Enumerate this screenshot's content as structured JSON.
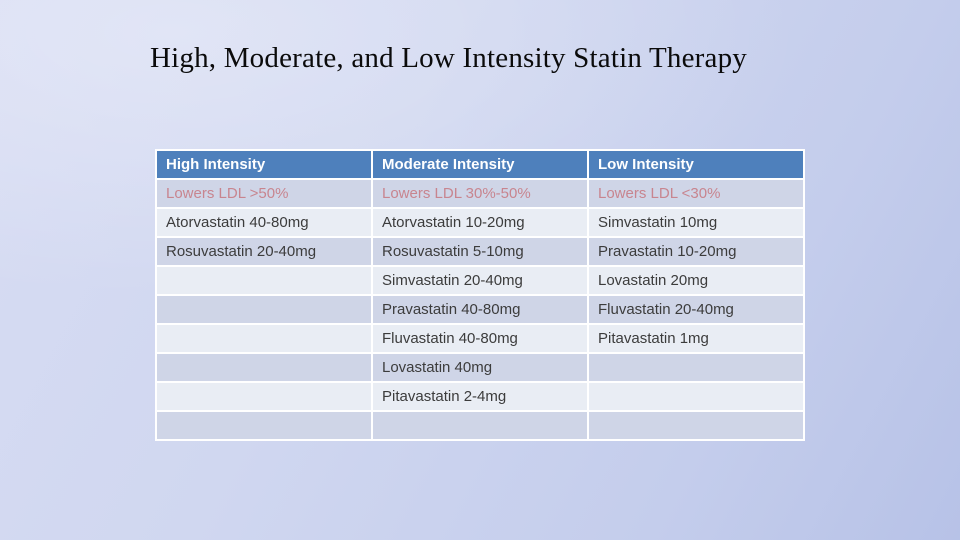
{
  "slide": {
    "title": "High, Moderate, and Low Intensity Statin Therapy"
  },
  "table": {
    "columns": [
      "High Intensity",
      "Moderate Intensity",
      "Low Intensity"
    ],
    "rows": [
      [
        "Lowers LDL >50%",
        "Lowers LDL 30%-50%",
        "Lowers LDL <30%"
      ],
      [
        "Atorvastatin 40-80mg",
        "Atorvastatin 10-20mg",
        "Simvastatin 10mg"
      ],
      [
        "Rosuvastatin 20-40mg",
        "Rosuvastatin 5-10mg",
        "Pravastatin 10-20mg"
      ],
      [
        "",
        "Simvastatin 20-40mg",
        "Lovastatin 20mg"
      ],
      [
        "",
        "Pravastatin 40-80mg",
        "Fluvastatin 20-40mg"
      ],
      [
        "",
        "Fluvastatin 40-80mg",
        "Pitavastatin 1mg"
      ],
      [
        "",
        "Lovastatin 40mg",
        ""
      ],
      [
        "",
        "Pitavastatin 2-4mg",
        ""
      ],
      [
        "",
        "",
        ""
      ]
    ],
    "colors": {
      "header_bg": "#4e80bc",
      "header_text": "#ffffff",
      "band_dark": "#cfd5e7",
      "band_light": "#e9edf4",
      "ldl_text": "#c8858f",
      "body_text": "#3c3c3c",
      "cell_border": "#ffffff"
    }
  },
  "chart_data": {
    "type": "table",
    "title": "High, Moderate, and Low Intensity Statin Therapy",
    "columns": [
      "High Intensity",
      "Moderate Intensity",
      "Low Intensity"
    ],
    "rows": [
      [
        "Lowers LDL >50%",
        "Lowers LDL 30%-50%",
        "Lowers LDL <30%"
      ],
      [
        "Atorvastatin 40-80mg",
        "Atorvastatin 10-20mg",
        "Simvastatin 10mg"
      ],
      [
        "Rosuvastatin 20-40mg",
        "Rosuvastatin 5-10mg",
        "Pravastatin 10-20mg"
      ],
      [
        "",
        "Simvastatin 20-40mg",
        "Lovastatin 20mg"
      ],
      [
        "",
        "Pravastatin 40-80mg",
        "Fluvastatin 20-40mg"
      ],
      [
        "",
        "Fluvastatin 40-80mg",
        "Pitavastatin 1mg"
      ],
      [
        "",
        "Lovastatin 40mg",
        ""
      ],
      [
        "",
        "Pitavastatin 2-4mg",
        ""
      ],
      [
        "",
        "",
        ""
      ]
    ]
  }
}
